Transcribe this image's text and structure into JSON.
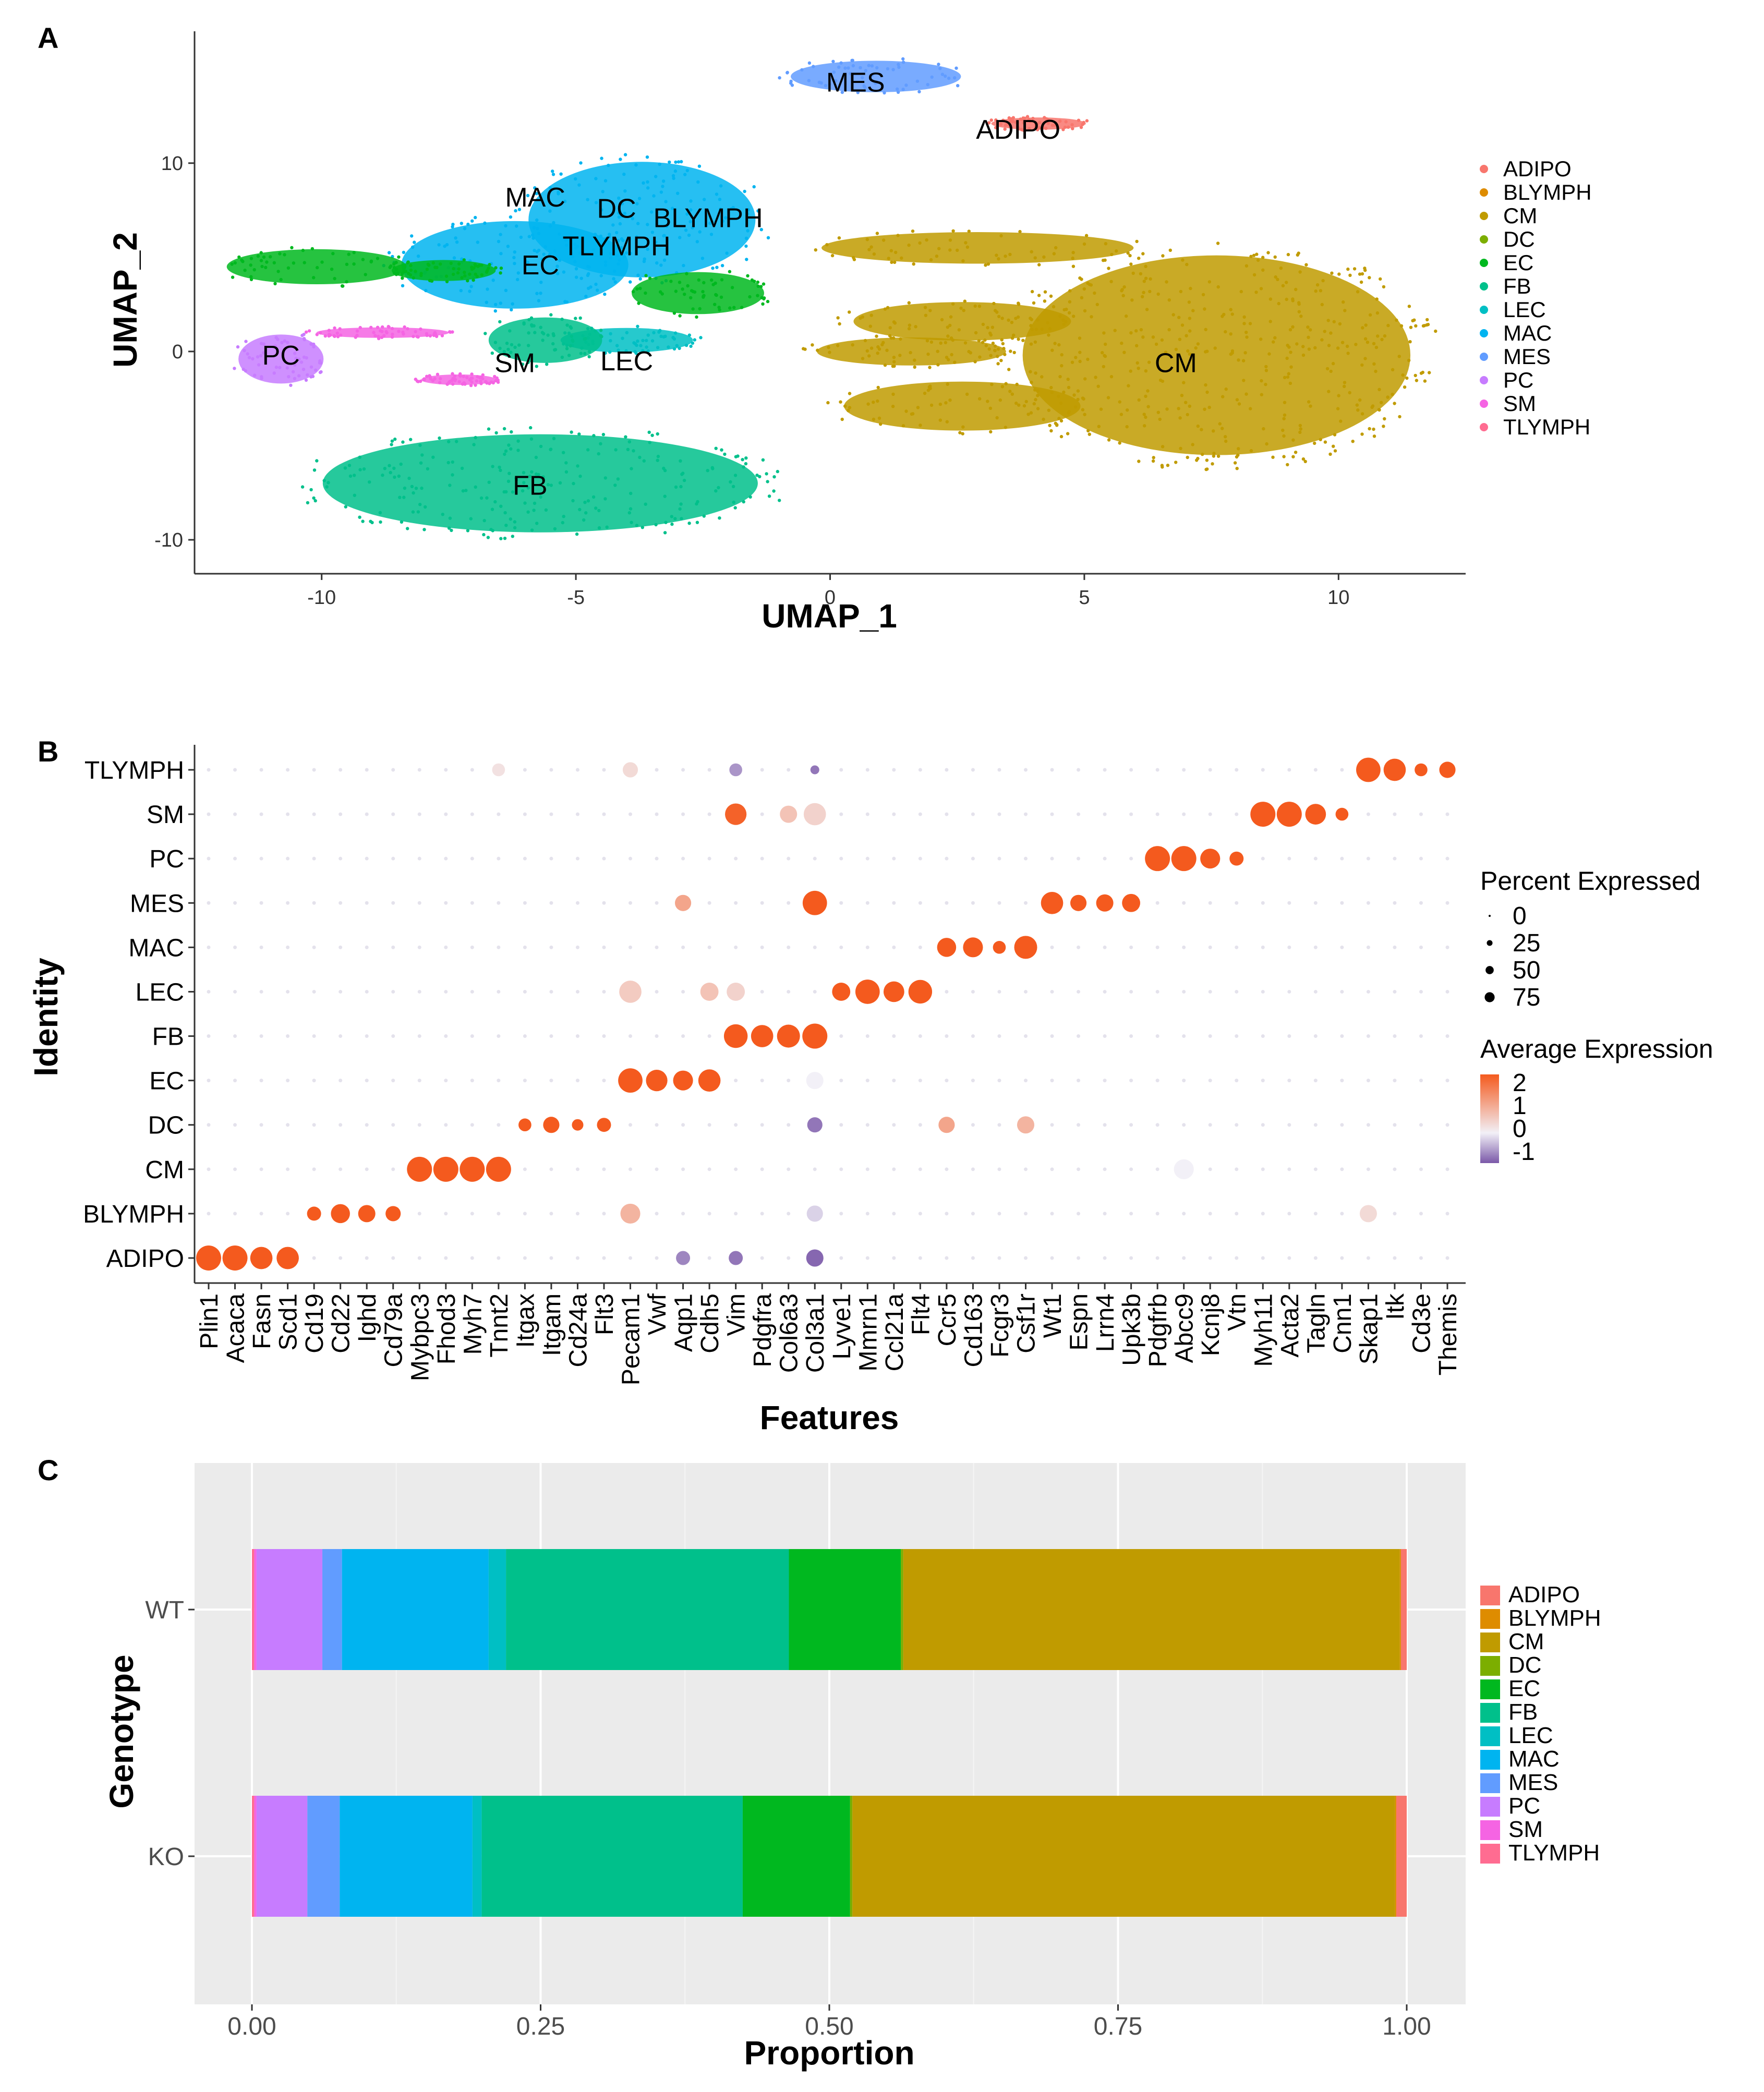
{
  "panels": {
    "a": "A",
    "b": "B",
    "c": "C"
  },
  "colors": {
    "ADIPO": "#F8766D",
    "BLYMPH": "#DE8C00",
    "CM": "#C09B00",
    "DC": "#7CAE00",
    "EC": "#00B81F",
    "FB": "#00C08B",
    "LEC": "#00BFC4",
    "MAC": "#00B4F0",
    "MES": "#619CFF",
    "PC": "#C77CFF",
    "SM": "#F564E3",
    "TLYMPH": "#FF6C91"
  },
  "chart_data": [
    {
      "type": "scatter",
      "title": "",
      "xlabel": "UMAP_1",
      "ylabel": "UMAP_2",
      "xlim": [
        -12.5,
        12.5
      ],
      "ylim": [
        -11.8,
        17
      ],
      "xticks": [
        -10,
        -5,
        0,
        5,
        10
      ],
      "yticks": [
        -10,
        0,
        10
      ],
      "legend": [
        "ADIPO",
        "BLYMPH",
        "CM",
        "DC",
        "EC",
        "FB",
        "LEC",
        "MAC",
        "MES",
        "PC",
        "SM",
        "TLYMPH"
      ],
      "legend_position": "right",
      "cluster_labels": [
        {
          "name": "MES",
          "x": 0.5,
          "y": 13.8
        },
        {
          "name": "ADIPO",
          "x": 3.7,
          "y": 11.3
        },
        {
          "name": "MAC",
          "x": -5.8,
          "y": 7.7
        },
        {
          "name": "DC",
          "x": -4.2,
          "y": 7.1
        },
        {
          "name": "BLYMPH",
          "x": -2.4,
          "y": 6.6
        },
        {
          "name": "TLYMPH",
          "x": -4.2,
          "y": 5.1
        },
        {
          "name": "EC",
          "x": -5.7,
          "y": 4.1
        },
        {
          "name": "PC",
          "x": -10.8,
          "y": -0.7
        },
        {
          "name": "SM",
          "x": -6.2,
          "y": -1.1
        },
        {
          "name": "LEC",
          "x": -4.0,
          "y": -1.0
        },
        {
          "name": "CM",
          "x": 6.8,
          "y": -1.1
        },
        {
          "name": "FB",
          "x": -5.9,
          "y": -7.6
        }
      ],
      "clusters": [
        {
          "name": "MES",
          "cx": 0.9,
          "cy": 14.6,
          "rx": 1.8,
          "ry": 0.9
        },
        {
          "name": "ADIPO",
          "cx": 4.1,
          "cy": 12.1,
          "rx": 1.0,
          "ry": 0.35
        },
        {
          "name": "MAC",
          "cx": -3.7,
          "cy": 7.0,
          "rx": 2.4,
          "ry": 3.3
        },
        {
          "name": "MAC",
          "cx": -6.2,
          "cy": 4.6,
          "rx": 2.4,
          "ry": 2.5
        },
        {
          "name": "LEC",
          "cx": -4.0,
          "cy": 0.6,
          "rx": 1.4,
          "ry": 0.7
        },
        {
          "name": "EC",
          "cx": -10.1,
          "cy": 4.5,
          "rx": 1.9,
          "ry": 1.0
        },
        {
          "name": "EC",
          "cx": -7.6,
          "cy": 4.3,
          "rx": 1.1,
          "ry": 0.6
        },
        {
          "name": "EC",
          "cx": -2.6,
          "cy": 3.1,
          "rx": 1.4,
          "ry": 1.2
        },
        {
          "name": "FB",
          "cx": -5.6,
          "cy": 0.6,
          "rx": 1.2,
          "ry": 1.3
        },
        {
          "name": "FB",
          "cx": -5.7,
          "cy": -7.0,
          "rx": 4.6,
          "ry": 2.8
        },
        {
          "name": "PC",
          "cx": -10.8,
          "cy": -0.4,
          "rx": 0.9,
          "ry": 1.4
        },
        {
          "name": "SM",
          "cx": -8.8,
          "cy": 1.0,
          "rx": 1.4,
          "ry": 0.3
        },
        {
          "name": "SM",
          "cx": -7.3,
          "cy": -1.5,
          "rx": 0.8,
          "ry": 0.3
        },
        {
          "name": "CM",
          "cx": 7.6,
          "cy": -0.2,
          "rx": 4.1,
          "ry": 5.7
        },
        {
          "name": "CM",
          "cx": 2.9,
          "cy": 5.5,
          "rx": 3.3,
          "ry": 0.9
        },
        {
          "name": "CM",
          "cx": 2.6,
          "cy": 1.6,
          "rx": 2.3,
          "ry": 1.1
        },
        {
          "name": "CM",
          "cx": 1.6,
          "cy": 0.0,
          "rx": 2.0,
          "ry": 0.8
        },
        {
          "name": "CM",
          "cx": 2.6,
          "cy": -2.9,
          "rx": 2.5,
          "ry": 1.4
        }
      ]
    },
    {
      "type": "dot",
      "xlabel": "Features",
      "ylabel": "Identity",
      "features": [
        "Plin1",
        "Acaca",
        "Fasn",
        "Scd1",
        "Cd19",
        "Cd22",
        "Ighd",
        "Cd79a",
        "Mybpc3",
        "Fhod3",
        "Myh7",
        "Tnnt2",
        "Itgax",
        "Itgam",
        "Cd24a",
        "Flt3",
        "Pecam1",
        "Vwf",
        "Aqp1",
        "Cdh5",
        "Vim",
        "Pdgfra",
        "Col6a3",
        "Col3a1",
        "Lyve1",
        "Mmrn1",
        "Ccl21a",
        "Flt4",
        "Ccr5",
        "Cd163",
        "Fcgr3",
        "Csf1r",
        "Wt1",
        "Espn",
        "Lrrn4",
        "Upk3b",
        "Pdgfrb",
        "Abcc9",
        "Kcnj8",
        "Vtn",
        "Myh11",
        "Acta2",
        "Tagln",
        "Cnn1",
        "Skap1",
        "Itk",
        "Cd3e",
        "Themis"
      ],
      "identities": [
        "ADIPO",
        "BLYMPH",
        "CM",
        "DC",
        "EC",
        "FB",
        "LEC",
        "MAC",
        "MES",
        "PC",
        "SM",
        "TLYMPH"
      ],
      "marker_blocks": [
        [
          0,
          4
        ],
        [
          4,
          8
        ],
        [
          8,
          12
        ],
        [
          12,
          16
        ],
        [
          16,
          20
        ],
        [
          20,
          24
        ],
        [
          24,
          28
        ],
        [
          28,
          32
        ],
        [
          32,
          36
        ],
        [
          36,
          40
        ],
        [
          40,
          44
        ],
        [
          44,
          48
        ]
      ],
      "marker_percent": [
        [
          95,
          95,
          75,
          75
        ],
        [
          30,
          55,
          45,
          35
        ],
        [
          95,
          95,
          95,
          95
        ],
        [
          25,
          40,
          20,
          30
        ],
        [
          90,
          70,
          60,
          75
        ],
        [
          85,
          75,
          80,
          95
        ],
        [
          50,
          90,
          65,
          85
        ],
        [
          55,
          60,
          25,
          80
        ],
        [
          75,
          40,
          45,
          50
        ],
        [
          95,
          95,
          60,
          30
        ],
        [
          95,
          95,
          65,
          25
        ],
        [
          90,
          75,
          25,
          40
        ]
      ],
      "extra_dots": [
        {
          "identity": "TLYMPH",
          "feature": "Pecam1",
          "pct": 35,
          "avg": 0.3
        },
        {
          "identity": "TLYMPH",
          "feature": "Vim",
          "pct": 25,
          "avg": -0.6
        },
        {
          "identity": "TLYMPH",
          "feature": "Col3a1",
          "pct": 12,
          "avg": -0.8
        },
        {
          "identity": "TLYMPH",
          "feature": "Tnnt2",
          "pct": 25,
          "avg": 0.2
        },
        {
          "identity": "SM",
          "feature": "Vim",
          "pct": 70,
          "avg": 1.9
        },
        {
          "identity": "SM",
          "feature": "Col6a3",
          "pct": 45,
          "avg": 0.6
        },
        {
          "identity": "SM",
          "feature": "Col3a1",
          "pct": 75,
          "avg": 0.4
        },
        {
          "identity": "MES",
          "feature": "Col3a1",
          "pct": 90,
          "avg": 2.0
        },
        {
          "identity": "MES",
          "feature": "Aqp1",
          "pct": 40,
          "avg": 1.0
        },
        {
          "identity": "LEC",
          "feature": "Pecam1",
          "pct": 75,
          "avg": 0.5
        },
        {
          "identity": "LEC",
          "feature": "Cdh5",
          "pct": 50,
          "avg": 0.6
        },
        {
          "identity": "LEC",
          "feature": "Vim",
          "pct": 50,
          "avg": 0.4
        },
        {
          "identity": "FB",
          "feature": "Vim",
          "pct": 70,
          "avg": 1.2
        },
        {
          "identity": "FB",
          "feature": "Col3a1",
          "pct": 90,
          "avg": 1.4
        },
        {
          "identity": "EC",
          "feature": "Col3a1",
          "pct": 45,
          "avg": 0.0
        },
        {
          "identity": "DC",
          "feature": "Ccr5",
          "pct": 40,
          "avg": 1.0
        },
        {
          "identity": "DC",
          "feature": "Csf1r",
          "pct": 45,
          "avg": 0.8
        },
        {
          "identity": "DC",
          "feature": "Col3a1",
          "pct": 35,
          "avg": -0.8
        },
        {
          "identity": "BLYMPH",
          "feature": "Pecam1",
          "pct": 60,
          "avg": 0.8
        },
        {
          "identity": "BLYMPH",
          "feature": "Col3a1",
          "pct": 40,
          "avg": -0.2
        },
        {
          "identity": "BLYMPH",
          "feature": "Skap1",
          "pct": 45,
          "avg": 0.3
        },
        {
          "identity": "CM",
          "feature": "Abcc9",
          "pct": 60,
          "avg": 0.0
        },
        {
          "identity": "ADIPO",
          "feature": "Col3a1",
          "pct": 45,
          "avg": -0.9
        },
        {
          "identity": "ADIPO",
          "feature": "Vim",
          "pct": 30,
          "avg": -0.8
        },
        {
          "identity": "ADIPO",
          "feature": "Aqp1",
          "pct": 30,
          "avg": -0.7
        }
      ],
      "legend_size_title": "Percent Expressed",
      "legend_size_values": [
        0,
        25,
        50,
        75
      ],
      "legend_color_title": "Average Expression",
      "legend_color_values": [
        2,
        1,
        0,
        -1
      ],
      "color_scale": {
        "low": "#7A58A8",
        "mid": "#F2F0F7",
        "high": "#F45A1E"
      }
    },
    {
      "type": "stacked_bar_horizontal",
      "xlabel": "Proportion",
      "ylabel": "Genotype",
      "categories": [
        "WT",
        "KO"
      ],
      "xlim": [
        0,
        1
      ],
      "xticks": [
        "0.00",
        "0.25",
        "0.50",
        "0.75",
        "1.00"
      ],
      "order": [
        "TLYMPH",
        "SM",
        "PC",
        "MES",
        "MAC",
        "LEC",
        "FB",
        "EC",
        "DC",
        "CM",
        "BLYMPH",
        "ADIPO"
      ],
      "series": [
        {
          "name": "TLYMPH",
          "values": [
            0.002,
            0.002
          ]
        },
        {
          "name": "SM",
          "values": [
            0.002,
            0.002
          ]
        },
        {
          "name": "PC",
          "values": [
            0.057,
            0.044
          ]
        },
        {
          "name": "MES",
          "values": [
            0.017,
            0.028
          ]
        },
        {
          "name": "MAC",
          "values": [
            0.127,
            0.115
          ]
        },
        {
          "name": "LEC",
          "values": [
            0.015,
            0.008
          ]
        },
        {
          "name": "FB",
          "values": [
            0.245,
            0.226
          ]
        },
        {
          "name": "EC",
          "values": [
            0.097,
            0.093
          ]
        },
        {
          "name": "DC",
          "values": [
            0.002,
            0.002
          ]
        },
        {
          "name": "CM",
          "values": [
            0.43,
            0.47
          ]
        },
        {
          "name": "BLYMPH",
          "values": [
            0.001,
            0.001
          ]
        },
        {
          "name": "ADIPO",
          "values": [
            0.005,
            0.009
          ]
        }
      ],
      "legend": [
        "ADIPO",
        "BLYMPH",
        "CM",
        "DC",
        "EC",
        "FB",
        "LEC",
        "MAC",
        "MES",
        "PC",
        "SM",
        "TLYMPH"
      ],
      "legend_position": "right"
    }
  ]
}
